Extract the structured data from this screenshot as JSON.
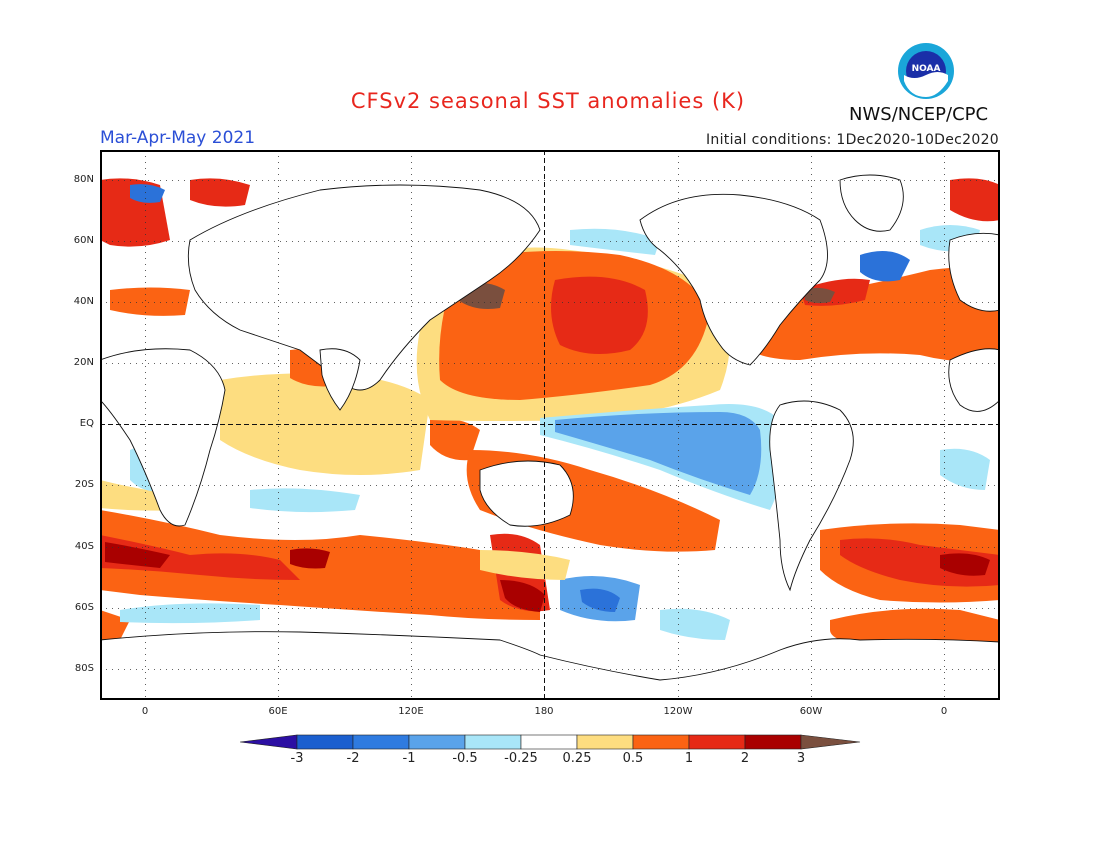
{
  "header": {
    "title": "CFSv2 seasonal SST anomalies (K)",
    "agency": "NWS/NCEP/CPC",
    "logo_text": "NOAA",
    "season": "Mar-Apr-May 2021",
    "initial_conditions": "Initial conditions: 1Dec2020-10Dec2020"
  },
  "map": {
    "lat_labels": [
      "80N",
      "60N",
      "40N",
      "20N",
      "EQ",
      "20S",
      "40S",
      "60S",
      "80S"
    ],
    "lon_labels": [
      "0",
      "60E",
      "120E",
      "180",
      "120W",
      "60W",
      "0"
    ],
    "colors": {
      "strong_warm": "#a90000",
      "warm2": "#e62a16",
      "warm1": "#fb6313",
      "mild_warm": "#fddd80",
      "neutral": "#ffffff",
      "mild_cool": "#a9e6f8",
      "cool1": "#5aa3ea",
      "cool2": "#2b72d9",
      "extreme_warm": "#7a4f3e"
    }
  },
  "colorbar": {
    "labels": [
      "-3",
      "-2",
      "-1",
      "-0.5",
      "-0.25",
      "0.25",
      "0.5",
      "1",
      "2",
      "3"
    ],
    "colors": [
      "#2c0fa3",
      "#1b5fcf",
      "#2f7be0",
      "#5aa3ea",
      "#a9e6f8",
      "#ffffff",
      "#fddd80",
      "#fb6313",
      "#e62a16",
      "#a90000",
      "#7a4f3e"
    ]
  }
}
